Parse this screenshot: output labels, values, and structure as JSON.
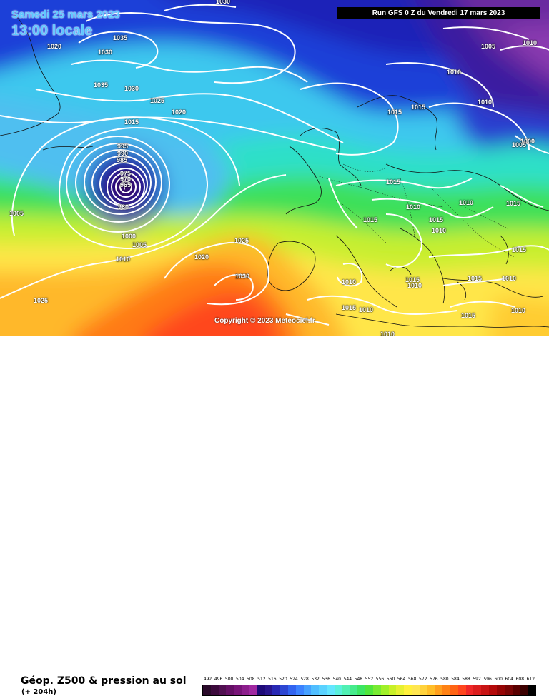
{
  "map": {
    "date_line_1": "Samedi 25 mars 2023",
    "date_line_2": "13:00 locale",
    "run_info": "Run GFS 0 Z du Vendredi 17 mars 2023",
    "copyright": "Copyright © 2023 Meteociel.fr",
    "isobar_labels": [
      "1030",
      "1020",
      "1035",
      "1030",
      "1035",
      "1030",
      "1025",
      "1020",
      "1015",
      "995",
      "990",
      "985",
      "975",
      "970",
      "965",
      "980",
      "1000",
      "1005",
      "1010",
      "1005",
      "1025",
      "1020",
      "1030",
      "1025",
      "1000",
      "1015",
      "1015",
      "1015",
      "1010",
      "1005",
      "1010",
      "1010",
      "1005",
      "1015",
      "1010",
      "1015",
      "1015",
      "1010",
      "1010",
      "1015",
      "1010",
      "1015",
      "1010",
      "1010",
      "1015",
      "1015",
      "1010",
      "1010",
      "1015",
      "1010"
    ],
    "legend_colors": [
      "#2a0a2a",
      "#3c0a3c",
      "#500f50",
      "#640f64",
      "#781478",
      "#8c1e8c",
      "#a028a0",
      "#1e0a78",
      "#28148c",
      "#2828b4",
      "#2d46d2",
      "#3264f0",
      "#3c82ff",
      "#46a0ff",
      "#50beff",
      "#5ad2ff",
      "#64e6ff",
      "#5af0dc",
      "#50f0b4",
      "#46eb8c",
      "#3ce664",
      "#50e63c",
      "#78eb32",
      "#a0f028",
      "#c8f028",
      "#e6f032",
      "#fff03c",
      "#ffe650",
      "#ffd23c",
      "#ffbe28",
      "#ffa01e",
      "#ff8214",
      "#ff6414",
      "#ff461e",
      "#f02828",
      "#dc1e1e",
      "#c81414",
      "#b40a0a",
      "#960505",
      "#7a0505",
      "#5a0000",
      "#3c0000",
      "#000000"
    ]
  },
  "footer": {
    "title": "Géop. Z500 & pression au sol",
    "lead_time": "(+ 204h)",
    "scale_labels": [
      "492",
      "496",
      "500",
      "504",
      "508",
      "512",
      "516",
      "520",
      "524",
      "528",
      "532",
      "536",
      "540",
      "544",
      "548",
      "552",
      "556",
      "560",
      "564",
      "568",
      "572",
      "576",
      "580",
      "584",
      "588",
      "592",
      "596",
      "600",
      "604",
      "608",
      "612"
    ]
  }
}
